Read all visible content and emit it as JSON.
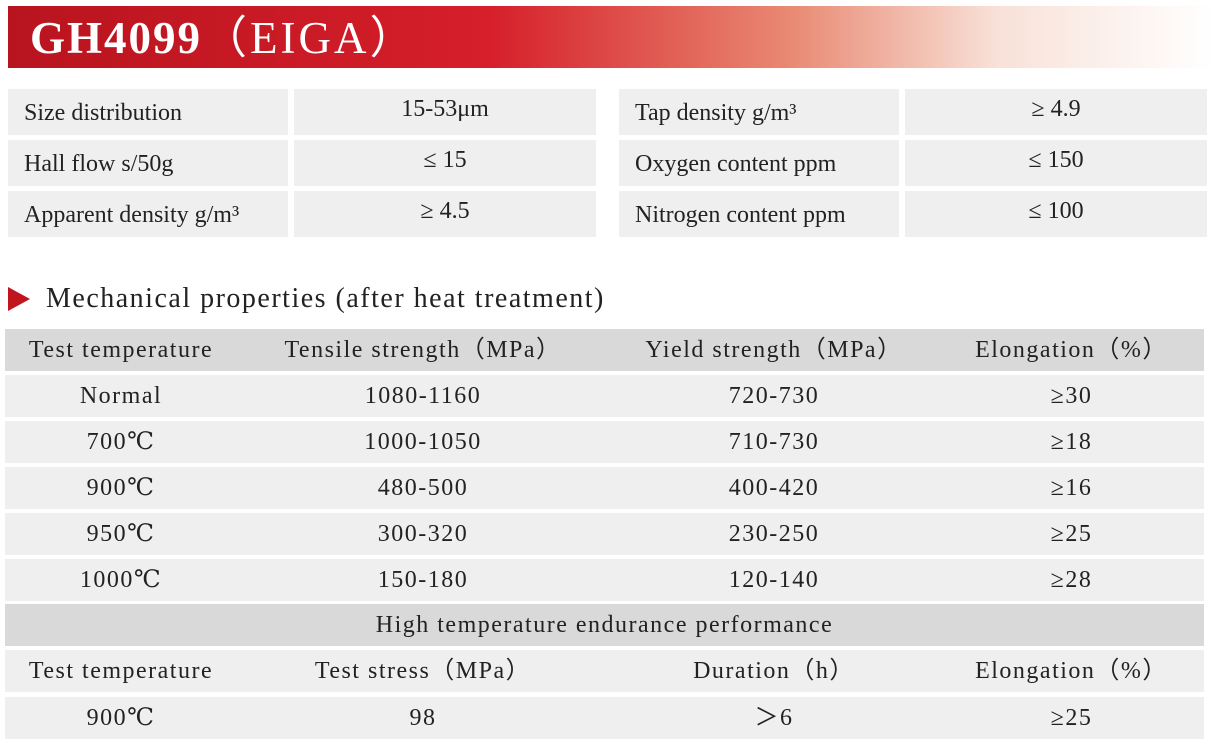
{
  "header": {
    "title": "GH4099",
    "subtitle": "（EIGA）"
  },
  "powder_properties": [
    {
      "label": "Size distribution",
      "value": "15-53μm"
    },
    {
      "label": "Tap density g/m³",
      "value": "≥ 4.9"
    },
    {
      "label": "Hall flow s/50g",
      "value": "≤ 15"
    },
    {
      "label": "Oxygen content ppm",
      "value": "≤ 150"
    },
    {
      "label": "Apparent density g/m³",
      "value": "≥ 4.5"
    },
    {
      "label": "Nitrogen content ppm",
      "value": "≤ 100"
    }
  ],
  "mechanical": {
    "section_title": "Mechanical properties (after heat treatment)",
    "headers": [
      "Test temperature",
      "Tensile strength（MPa）",
      "Yield strength（MPa）",
      "Elongation（%）"
    ],
    "rows": [
      [
        "Normal",
        "1080-1160",
        "720-730",
        "≥30"
      ],
      [
        "700℃",
        "1000-1050",
        "710-730",
        "≥18"
      ],
      [
        "900℃",
        "480-500",
        "400-420",
        "≥16"
      ],
      [
        "950℃",
        "300-320",
        "230-250",
        "≥25"
      ],
      [
        "1000℃",
        "150-180",
        "120-140",
        "≥28"
      ]
    ]
  },
  "endurance": {
    "title": "High temperature endurance performance",
    "headers": [
      "Test temperature",
      "Test stress（MPa）",
      "Duration（h）",
      "Elongation（%）"
    ],
    "rows": [
      [
        "900℃",
        "98",
        "＞6",
        "≥25"
      ]
    ]
  },
  "colors": {
    "accent": "#c0141e",
    "row_light": "#efefef",
    "row_dark": "#d9d9d9"
  }
}
